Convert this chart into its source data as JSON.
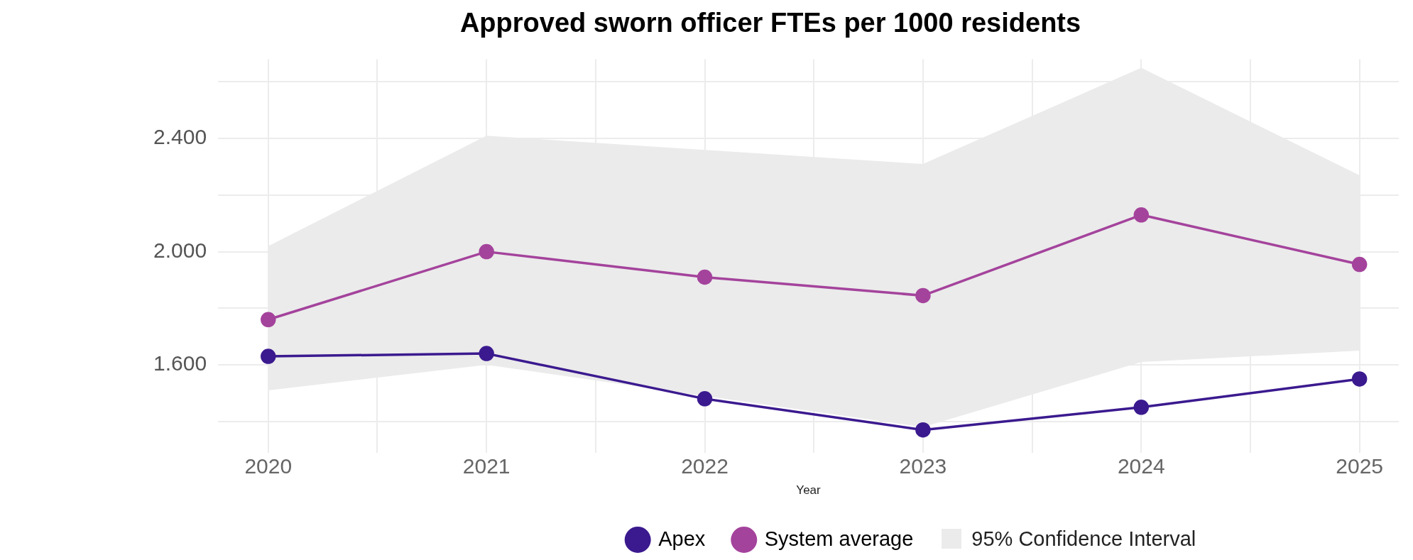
{
  "chart_data": {
    "type": "line",
    "title": "Approved sworn officer FTEs per 1000 residents",
    "xlabel": "Year",
    "x": [
      2020,
      2021,
      2022,
      2023,
      2024,
      2025
    ],
    "series": [
      {
        "name": "Apex",
        "color": "#3b1a8f",
        "values": [
          1.63,
          1.64,
          1.48,
          1.37,
          1.45,
          1.55
        ]
      },
      {
        "name": "System average",
        "color": "#a4439c",
        "values": [
          1.76,
          2.0,
          1.91,
          1.845,
          2.13,
          1.955
        ],
        "lower": [
          1.51,
          1.6,
          1.49,
          1.38,
          1.61,
          1.65
        ],
        "upper": [
          2.02,
          2.41,
          2.36,
          2.31,
          2.65,
          2.27
        ]
      }
    ],
    "annotations": [
      "95% Confidence Interval"
    ],
    "xlim": [
      2019.77,
      2025.18
    ],
    "xticks": [
      2020,
      {
        "value": 2020.5,
        "label": null
      },
      2021,
      {
        "value": 2021.5,
        "label": null
      },
      2022,
      {
        "value": 2022.5,
        "label": null
      },
      2023,
      {
        "value": 2023.5,
        "label": null
      },
      2024,
      {
        "value": 2024.5,
        "label": null
      },
      2025
    ],
    "ylim": [
      1.29,
      2.68
    ],
    "yticks": [
      {
        "value": 1.4,
        "label": null
      },
      {
        "value": 1.6,
        "label": "1.600"
      },
      {
        "value": 1.8,
        "label": null
      },
      {
        "value": 2.0,
        "label": "2.000"
      },
      {
        "value": 2.2,
        "label": null
      },
      {
        "value": 2.4,
        "label": "2.400"
      },
      {
        "value": 2.6,
        "label": null
      }
    ],
    "grid": true,
    "legend": "bottom",
    "marker": "circle",
    "line_style": "solid"
  }
}
